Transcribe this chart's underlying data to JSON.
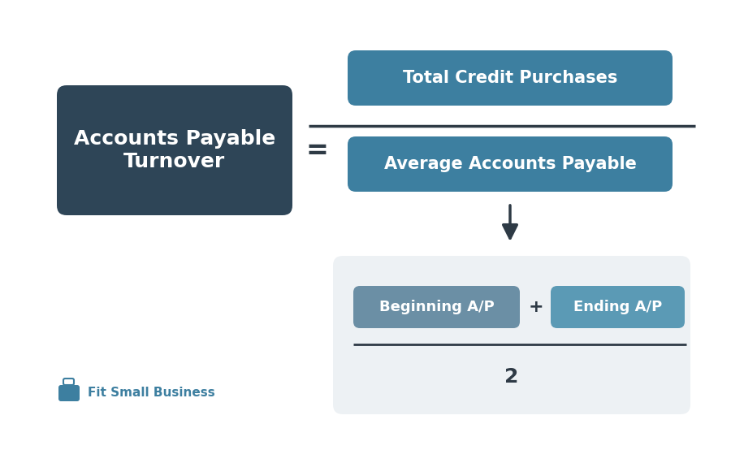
{
  "outer_bg": "#ffffff",
  "dark_box_color": "#2e4557",
  "teal_box_color": "#3d7fa0",
  "medium_box_color": "#6b8fa5",
  "light_box_color": "#5b9ab5",
  "sub_bg_color": "#edf1f4",
  "divider_color": "#2e3a45",
  "arrow_color": "#2e3a45",
  "text_color_white": "#ffffff",
  "text_color_dark": "#2e3a45",
  "title": "Accounts Payable\nTurnover",
  "label_tcp": "Total Credit Purchases",
  "label_aap": "Average Accounts Payable",
  "label_bap": "Beginning A/P",
  "label_eap": "Ending A/P",
  "label_plus": "+",
  "label_2": "2",
  "label_eq": "=",
  "brand_text": "Fit Small Business",
  "font_size_title": 18,
  "font_size_label_large": 15,
  "font_size_label_small": 13,
  "font_size_eq": 24,
  "font_size_2": 18,
  "font_size_brand": 11,
  "fig_width": 9.0,
  "fig_height": 5.54,
  "dpi": 100
}
